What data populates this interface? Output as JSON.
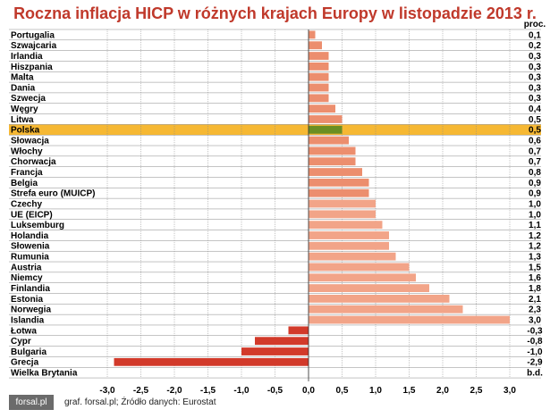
{
  "title": "Roczna inflacja HICP w różnych krajach Europy w listopadzie 2013 r.",
  "unit_label": "proc.",
  "footer": {
    "logo": "forsal.pl",
    "credit": "graf. forsal.pl; Źródło danych: Eurostat"
  },
  "colors": {
    "title": "#c0392b",
    "positive": "#f2a488",
    "positive_mid": "#ec8e6e",
    "poland_bar": "#6b8e23",
    "poland_highlight": "#f5b01d",
    "negative": "#d23a2a",
    "grid": "#888888"
  },
  "chart_data": {
    "type": "bar",
    "orientation": "horizontal",
    "title": "Roczna inflacja HICP w różnych krajach Europy w listopadzie 2013 r.",
    "xlim": [
      -3.0,
      3.0
    ],
    "x_ticks": [
      "-3,0",
      "-2,5",
      "-2,0",
      "-1,5",
      "-1,0",
      "-0,5",
      "0,0",
      "0,5",
      "1,0",
      "1,5",
      "2,0",
      "2,5",
      "3,0"
    ],
    "grid": true,
    "highlight": "Polska",
    "categories": [
      "Portugalia",
      "Szwajcaria",
      "Irlandia",
      "Hiszpania",
      "Malta",
      "Dania",
      "Szwecja",
      "Węgry",
      "Litwa",
      "Polska",
      "Słowacja",
      "Włochy",
      "Chorwacja",
      "Francja",
      "Belgia",
      "Strefa euro (MUICP)",
      "Czechy",
      "UE (EICP)",
      "Luksemburg",
      "Holandia",
      "Słowenia",
      "Rumunia",
      "Austria",
      "Niemcy",
      "Finlandia",
      "Estonia",
      "Norwegia",
      "Islandia",
      "Łotwa",
      "Cypr",
      "Bulgaria",
      "Grecja",
      "Wielka Brytania"
    ],
    "values": [
      0.1,
      0.2,
      0.3,
      0.3,
      0.3,
      0.3,
      0.3,
      0.4,
      0.5,
      0.5,
      0.6,
      0.7,
      0.7,
      0.8,
      0.9,
      0.9,
      1.0,
      1.0,
      1.1,
      1.2,
      1.2,
      1.3,
      1.5,
      1.6,
      1.8,
      2.1,
      2.3,
      3.0,
      -0.3,
      -0.8,
      -1.0,
      -2.9,
      null
    ],
    "value_labels": [
      "0,1",
      "0,2",
      "0,3",
      "0,3",
      "0,3",
      "0,3",
      "0,3",
      "0,4",
      "0,5",
      "0,5",
      "0,6",
      "0,7",
      "0,7",
      "0,8",
      "0,9",
      "0,9",
      "1,0",
      "1,0",
      "1,1",
      "1,2",
      "1,2",
      "1,3",
      "1,5",
      "1,6",
      "1,8",
      "2,1",
      "2,3",
      "3,0",
      "-0,3",
      "-0,8",
      "-1,0",
      "-2,9",
      "b.d."
    ]
  }
}
